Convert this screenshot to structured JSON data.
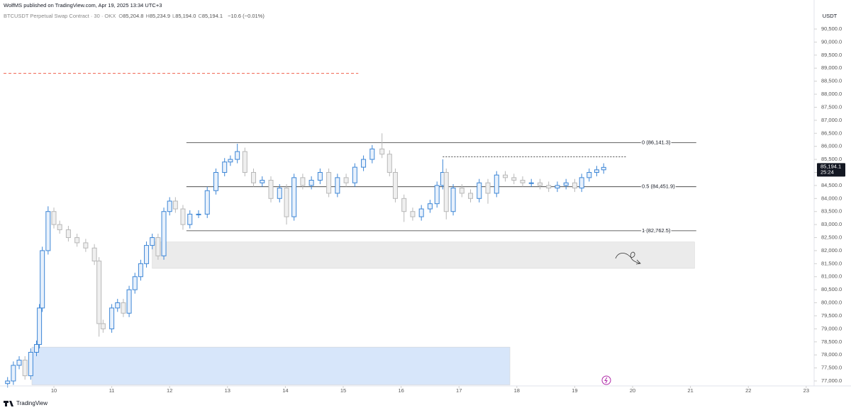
{
  "header": {
    "publisher": "WolfMS published on TradingView.com, Apr 19, 2025 13:34 UTC+3",
    "symbol": "BTCUSDT Perpetual Swap Contract · 30 · OKX",
    "ohlc": [
      {
        "label": "O",
        "value": "85,204.8"
      },
      {
        "label": "H",
        "value": "85,234.9"
      },
      {
        "label": "L",
        "value": "85,194.0"
      },
      {
        "label": "C",
        "value": "85,194.1"
      }
    ],
    "change": "−10.6 (−0.01%)",
    "currency": "USDT"
  },
  "footer": {
    "brand": "TradingView"
  },
  "chart_data": {
    "type": "candlestick",
    "up_color": "#3d86d6",
    "down_color": "#b8b8b8",
    "x": [
      9.2,
      9.3,
      9.4,
      9.5,
      9.6,
      9.7,
      9.75,
      9.8,
      9.9,
      10.0,
      10.1,
      10.25,
      10.4,
      10.55,
      10.7,
      10.78,
      10.85,
      11.0,
      11.1,
      11.2,
      11.3,
      11.4,
      11.5,
      11.6,
      11.7,
      11.8,
      11.9,
      12.0,
      12.1,
      12.23,
      12.35,
      12.5,
      12.65,
      12.8,
      12.95,
      13.05,
      13.17,
      13.3,
      13.45,
      13.6,
      13.75,
      13.9,
      14.02,
      14.15,
      14.3,
      14.45,
      14.6,
      14.75,
      14.9,
      15.05,
      15.2,
      15.35,
      15.5,
      15.67,
      15.8,
      15.9,
      16.05,
      16.2,
      16.35,
      16.5,
      16.62,
      16.72,
      16.78,
      16.9,
      17.05,
      17.2,
      17.35,
      17.5,
      17.65,
      17.8,
      17.95,
      18.1,
      18.25,
      18.4,
      18.55,
      18.7,
      18.85,
      19.0,
      19.12,
      19.25,
      19.38,
      19.5
    ],
    "open": [
      76900,
      77000,
      77600,
      77800,
      77200,
      78100,
      78400,
      79800,
      82000,
      83500,
      83000,
      82800,
      82500,
      82300,
      82100,
      81600,
      79200,
      79000,
      79800,
      80000,
      79600,
      80500,
      81000,
      81500,
      82200,
      82500,
      81800,
      83500,
      83900,
      83600,
      83000,
      83400,
      83400,
      84300,
      85000,
      85400,
      85500,
      85800,
      85000,
      84600,
      84700,
      84000,
      84400,
      83300,
      84800,
      84500,
      84700,
      85000,
      84200,
      84800,
      84600,
      85200,
      85500,
      85900,
      85700,
      85000,
      84000,
      83500,
      83300,
      83600,
      83800,
      84500,
      85000,
      83500,
      84400,
      84200,
      84000,
      84600,
      84200,
      84900,
      84800,
      84700,
      84600,
      84600,
      84500,
      84400,
      84500,
      84600,
      84400,
      84800,
      85000,
      85100
    ],
    "high": [
      77150,
      77750,
      77950,
      77950,
      78250,
      78550,
      79950,
      82150,
      83700,
      83650,
      83150,
      82950,
      82650,
      82450,
      82250,
      81750,
      79350,
      79950,
      80150,
      80150,
      80650,
      81150,
      81650,
      82350,
      82650,
      82650,
      83650,
      84050,
      84050,
      83750,
      83550,
      83550,
      84450,
      85150,
      85550,
      85650,
      86100,
      85950,
      85150,
      84850,
      84850,
      84550,
      84550,
      84950,
      84950,
      84850,
      85150,
      85150,
      84950,
      84950,
      85350,
      85650,
      86050,
      86500,
      85850,
      85150,
      84150,
      83650,
      83750,
      83950,
      84650,
      85500,
      85150,
      84550,
      84550,
      84350,
      84750,
      84750,
      85050,
      85050,
      84950,
      84850,
      84750,
      84750,
      84650,
      84650,
      84750,
      84750,
      84950,
      85150,
      85250,
      85350
    ],
    "low": [
      76750,
      76850,
      77450,
      77050,
      77050,
      77950,
      78250,
      79650,
      81850,
      82850,
      82650,
      82350,
      82150,
      81950,
      81450,
      78700,
      78850,
      78850,
      79650,
      79450,
      79450,
      80350,
      80850,
      81350,
      82050,
      81650,
      81650,
      83350,
      83450,
      82800,
      82850,
      83250,
      83250,
      84150,
      84850,
      85250,
      85350,
      84850,
      84450,
      84450,
      83850,
      83850,
      83000,
      83150,
      84350,
      84350,
      84550,
      84050,
      84050,
      84450,
      84450,
      85050,
      85350,
      85550,
      84850,
      83850,
      83100,
      83150,
      83150,
      83450,
      83650,
      84350,
      83200,
      83350,
      84050,
      83850,
      83850,
      83800,
      84050,
      84650,
      84550,
      84450,
      84450,
      84350,
      84250,
      84250,
      84350,
      84250,
      84250,
      84650,
      84850,
      84950
    ],
    "close": [
      77000,
      77600,
      77800,
      77200,
      78100,
      78400,
      79800,
      82000,
      83500,
      83000,
      82800,
      82500,
      82300,
      82100,
      81600,
      79200,
      79000,
      79800,
      80000,
      79600,
      80500,
      81000,
      81500,
      82200,
      82500,
      81800,
      83500,
      83900,
      83600,
      83000,
      83400,
      83400,
      84300,
      85000,
      85400,
      85500,
      85800,
      85000,
      84600,
      84700,
      84000,
      84400,
      83300,
      84800,
      84500,
      84700,
      85000,
      84200,
      84800,
      84600,
      85200,
      85500,
      85900,
      85700,
      85000,
      84000,
      83500,
      83300,
      83600,
      83800,
      84500,
      85000,
      83500,
      84400,
      84200,
      84000,
      84600,
      84200,
      84900,
      84800,
      84700,
      84600,
      84600,
      84500,
      84400,
      84500,
      84600,
      84400,
      84800,
      85000,
      85100,
      85194.1
    ],
    "xlim": [
      9.13,
      23.1
    ],
    "xticks": [
      10,
      11,
      12,
      13,
      14,
      15,
      16,
      17,
      18,
      19,
      20,
      21,
      22,
      23
    ],
    "ylim": [
      76810,
      91125
    ],
    "yticks": [
      {
        "value": 77000,
        "label": "77,000.0"
      },
      {
        "value": 77500,
        "label": "77,500.0"
      },
      {
        "value": 78000,
        "label": "78,000.0"
      },
      {
        "value": 78500,
        "label": "78,500.0"
      },
      {
        "value": 79000,
        "label": "79,000.0"
      },
      {
        "value": 79500,
        "label": "79,500.0"
      },
      {
        "value": 80000,
        "label": "80,000.0"
      },
      {
        "value": 80500,
        "label": "80,500.0"
      },
      {
        "value": 81000,
        "label": "81,000.0"
      },
      {
        "value": 81500,
        "label": "81,500.0"
      },
      {
        "value": 82000,
        "label": "82,000.0"
      },
      {
        "value": 82500,
        "label": "82,500.0"
      },
      {
        "value": 83000,
        "label": "83,000.0"
      },
      {
        "value": 83500,
        "label": "83,500.0"
      },
      {
        "value": 84000,
        "label": "84,000.0"
      },
      {
        "value": 84500,
        "label": "84,500.0"
      },
      {
        "value": 85000,
        "label": "85,000.0"
      },
      {
        "value": 85500,
        "label": "85,500.0"
      },
      {
        "value": 86000,
        "label": "86,000.0"
      },
      {
        "value": 86500,
        "label": "86,500.0"
      },
      {
        "value": 87000,
        "label": "87,000.0"
      },
      {
        "value": 87500,
        "label": "87,500.0"
      },
      {
        "value": 88000,
        "label": "88,000.0"
      },
      {
        "value": 88500,
        "label": "88,500.0"
      },
      {
        "value": 89000,
        "label": "89,000.0"
      },
      {
        "value": 89500,
        "label": "89,500.0"
      },
      {
        "value": 90000,
        "label": "90,000.0"
      },
      {
        "value": 90500,
        "label": "90,500.0"
      }
    ],
    "zones": [
      {
        "y": [
          81320,
          82330
        ],
        "x": [
          11.7,
          21.07
        ],
        "color": "#ebebeb"
      },
      {
        "y": [
          76850,
          78300
        ],
        "x": [
          9.62,
          17.88
        ],
        "color": "#d7e6fa"
      }
    ],
    "fib_levels": [
      {
        "value": 86141.3,
        "label": "0 (86,141.3)"
      },
      {
        "value": 84451.9,
        "label": "0.5 (84,451.9)"
      },
      {
        "value": 82762.5,
        "label": "1 (82,762.5)"
      }
    ],
    "fib_x": [
      12.29,
      21.1
    ],
    "lines": [
      {
        "value": 88800,
        "x": [
          9.13,
          15.26
        ],
        "color": "#f0604d",
        "style": "dashed"
      },
      {
        "value": 85600,
        "x": [
          16.72,
          19.9
        ],
        "color": "#444444",
        "style": "dotted"
      }
    ],
    "last_price": {
      "value": 85194.1,
      "label": "85,194.1"
    },
    "countdown": "25:24"
  }
}
